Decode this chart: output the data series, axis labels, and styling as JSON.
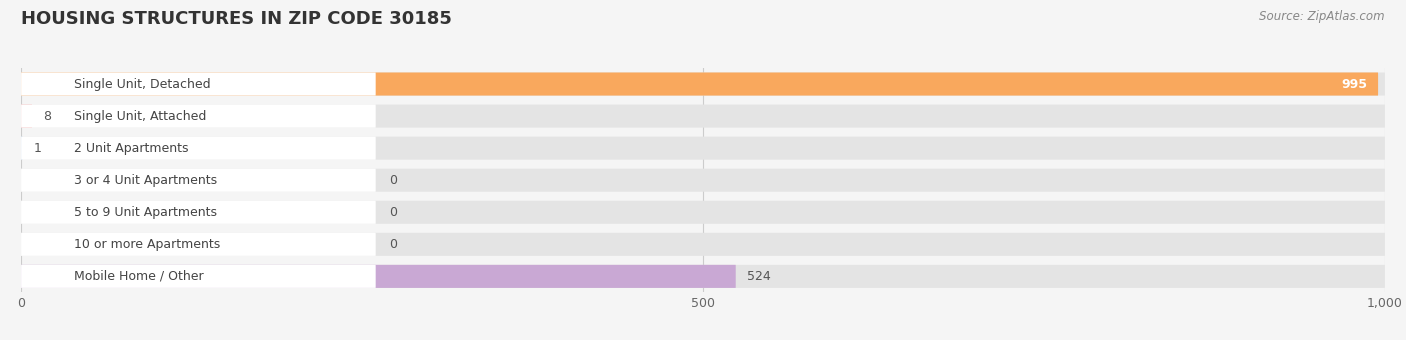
{
  "title": "HOUSING STRUCTURES IN ZIP CODE 30185",
  "source": "Source: ZipAtlas.com",
  "categories": [
    "Single Unit, Detached",
    "Single Unit, Attached",
    "2 Unit Apartments",
    "3 or 4 Unit Apartments",
    "5 to 9 Unit Apartments",
    "10 or more Apartments",
    "Mobile Home / Other"
  ],
  "values": [
    995,
    8,
    1,
    0,
    0,
    0,
    524
  ],
  "bar_colors": [
    "#f9a85d",
    "#f4a0a0",
    "#a8c4e0",
    "#a8c4e0",
    "#a8c4e0",
    "#a8c4e0",
    "#c9a8d4"
  ],
  "bg_color": "#f5f5f5",
  "bar_bg_color": "#e4e4e4",
  "bar_row_bg": "#ebebeb",
  "white_label_bg": "#ffffff",
  "xlim": [
    0,
    1000
  ],
  "xticks": [
    0,
    500,
    1000
  ],
  "title_fontsize": 13,
  "label_fontsize": 9,
  "value_fontsize": 9,
  "bar_height": 0.72,
  "fig_width": 14.06,
  "fig_height": 3.4
}
